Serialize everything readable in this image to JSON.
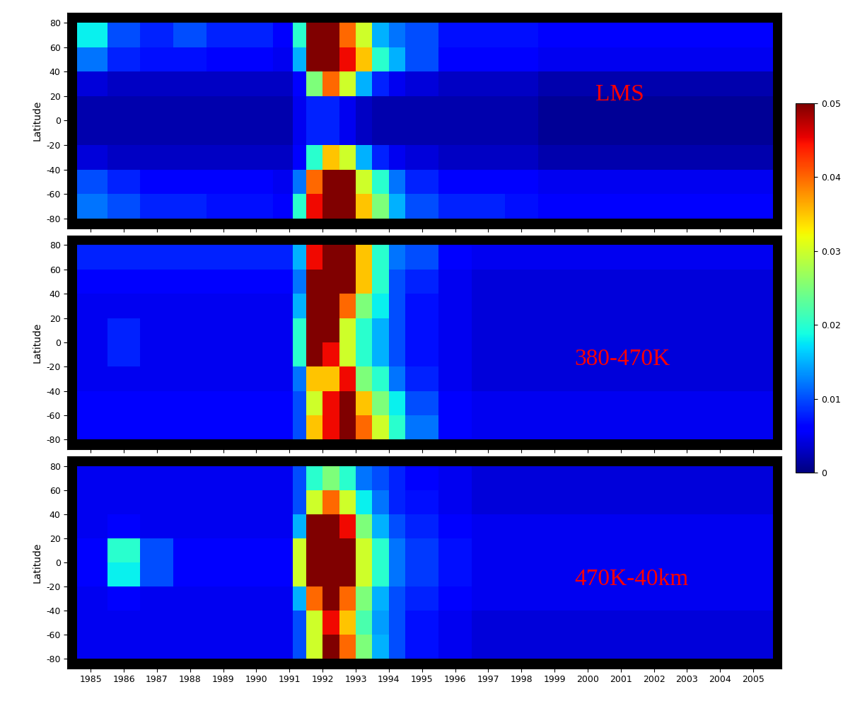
{
  "colorbar": {
    "range": [
      0,
      0.05
    ],
    "ticks": [
      0,
      0.01,
      0.02,
      0.03,
      0.04,
      0.05
    ]
  },
  "chart_data": [
    {
      "type": "heatmap",
      "label": "LMS",
      "ylabel": "Latitude",
      "tick_labels": "y",
      "xlim": [
        1984.3,
        2005.85
      ],
      "xticks": [
        1985,
        1986,
        1987,
        1988,
        1989,
        1990,
        1991,
        1992,
        1993,
        1994,
        1995,
        1996,
        1997,
        1998,
        1999,
        2000,
        2001,
        2002,
        2003,
        2004,
        2005
      ],
      "ylim": [
        -88,
        88
      ],
      "yticks": [
        -80,
        -60,
        -40,
        -20,
        0,
        20,
        40,
        60,
        80
      ],
      "x_edges": [
        1984.6,
        1985.5,
        1986.5,
        1987.5,
        1988.5,
        1989.5,
        1990.5,
        1991.1,
        1991.5,
        1992.0,
        1992.5,
        1993.0,
        1993.5,
        1994.0,
        1994.5,
        1995.5,
        1996.5,
        1997.5,
        1998.5,
        1999.5,
        2000.5,
        2001.5,
        2002.5,
        2003.5,
        2004.5,
        2005.6
      ],
      "y_edges": [
        -80,
        -60,
        -40,
        -20,
        0,
        20,
        40,
        60,
        80
      ],
      "cells": [
        [
          0.012,
          0.01,
          0.008,
          0.008,
          0.007,
          0.007,
          0.006,
          0.02,
          0.045,
          0.05,
          0.05,
          0.035,
          0.025,
          0.015,
          0.01,
          0.008,
          0.008,
          0.007,
          0.006,
          0.006,
          0.006,
          0.006,
          0.006,
          0.006,
          0.006
        ],
        [
          0.01,
          0.008,
          0.006,
          0.006,
          0.006,
          0.006,
          0.005,
          0.012,
          0.04,
          0.05,
          0.05,
          0.03,
          0.02,
          0.012,
          0.008,
          0.006,
          0.006,
          0.006,
          0.005,
          0.005,
          0.005,
          0.005,
          0.005,
          0.005,
          0.005
        ],
        [
          0.004,
          0.003,
          0.003,
          0.003,
          0.003,
          0.003,
          0.003,
          0.006,
          0.02,
          0.035,
          0.03,
          0.015,
          0.008,
          0.005,
          0.004,
          0.003,
          0.003,
          0.003,
          0.002,
          0.002,
          0.002,
          0.002,
          0.002,
          0.002,
          0.002
        ],
        [
          0.002,
          0.002,
          0.002,
          0.002,
          0.002,
          0.002,
          0.002,
          0.005,
          0.008,
          0.008,
          0.005,
          0.003,
          0.002,
          0.002,
          0.002,
          0.002,
          0.002,
          0.002,
          0.001,
          0.001,
          0.001,
          0.001,
          0.001,
          0.001,
          0.001
        ],
        [
          0.002,
          0.002,
          0.002,
          0.002,
          0.002,
          0.002,
          0.002,
          0.005,
          0.008,
          0.008,
          0.005,
          0.003,
          0.002,
          0.002,
          0.002,
          0.002,
          0.002,
          0.002,
          0.001,
          0.001,
          0.001,
          0.001,
          0.001,
          0.001,
          0.001
        ],
        [
          0.004,
          0.003,
          0.003,
          0.003,
          0.003,
          0.003,
          0.003,
          0.006,
          0.025,
          0.04,
          0.03,
          0.015,
          0.008,
          0.005,
          0.004,
          0.003,
          0.003,
          0.003,
          0.002,
          0.002,
          0.002,
          0.002,
          0.002,
          0.002,
          0.002
        ],
        [
          0.012,
          0.008,
          0.007,
          0.007,
          0.006,
          0.006,
          0.005,
          0.015,
          0.05,
          0.05,
          0.045,
          0.035,
          0.02,
          0.015,
          0.01,
          0.006,
          0.006,
          0.006,
          0.005,
          0.005,
          0.005,
          0.005,
          0.005,
          0.005,
          0.005
        ],
        [
          0.018,
          0.01,
          0.008,
          0.01,
          0.008,
          0.008,
          0.006,
          0.02,
          0.05,
          0.05,
          0.04,
          0.03,
          0.015,
          0.012,
          0.01,
          0.007,
          0.007,
          0.007,
          0.006,
          0.006,
          0.006,
          0.006,
          0.006,
          0.006,
          0.006
        ]
      ]
    },
    {
      "type": "heatmap",
      "label": "380-470K",
      "ylabel": "Latitude",
      "tick_labels": "y",
      "xlim": [
        1984.3,
        2005.85
      ],
      "xticks": [
        1985,
        1986,
        1987,
        1988,
        1989,
        1990,
        1991,
        1992,
        1993,
        1994,
        1995,
        1996,
        1997,
        1998,
        1999,
        2000,
        2001,
        2002,
        2003,
        2004,
        2005
      ],
      "ylim": [
        -88,
        88
      ],
      "yticks": [
        -80,
        -60,
        -40,
        -20,
        0,
        20,
        40,
        60,
        80
      ],
      "x_edges": [
        1984.6,
        1985.5,
        1986.5,
        1987.5,
        1988.5,
        1989.5,
        1990.5,
        1991.1,
        1991.5,
        1992.0,
        1992.5,
        1993.0,
        1993.5,
        1994.0,
        1994.5,
        1995.5,
        1996.5,
        1997.5,
        1998.5,
        1999.5,
        2000.5,
        2001.5,
        2002.5,
        2003.5,
        2004.5,
        2005.6
      ],
      "y_edges": [
        -80,
        -60,
        -40,
        -20,
        0,
        20,
        40,
        60,
        80
      ],
      "cells": [
        [
          0.006,
          0.006,
          0.006,
          0.006,
          0.006,
          0.006,
          0.006,
          0.01,
          0.035,
          0.045,
          0.05,
          0.04,
          0.03,
          0.02,
          0.012,
          0.006,
          0.005,
          0.005,
          0.005,
          0.005,
          0.005,
          0.005,
          0.005,
          0.005,
          0.005
        ],
        [
          0.006,
          0.006,
          0.006,
          0.006,
          0.006,
          0.006,
          0.006,
          0.01,
          0.03,
          0.045,
          0.05,
          0.035,
          0.025,
          0.018,
          0.01,
          0.006,
          0.005,
          0.005,
          0.005,
          0.005,
          0.005,
          0.005,
          0.005,
          0.005,
          0.005
        ],
        [
          0.005,
          0.005,
          0.005,
          0.005,
          0.005,
          0.005,
          0.005,
          0.012,
          0.035,
          0.035,
          0.045,
          0.025,
          0.02,
          0.012,
          0.008,
          0.005,
          0.004,
          0.004,
          0.004,
          0.004,
          0.004,
          0.004,
          0.004,
          0.004,
          0.004
        ],
        [
          0.005,
          0.008,
          0.005,
          0.005,
          0.005,
          0.005,
          0.005,
          0.02,
          0.05,
          0.045,
          0.03,
          0.02,
          0.015,
          0.01,
          0.007,
          0.005,
          0.004,
          0.004,
          0.004,
          0.004,
          0.004,
          0.004,
          0.004,
          0.004,
          0.004
        ],
        [
          0.005,
          0.008,
          0.005,
          0.005,
          0.005,
          0.005,
          0.005,
          0.02,
          0.05,
          0.05,
          0.03,
          0.02,
          0.015,
          0.01,
          0.007,
          0.005,
          0.004,
          0.004,
          0.004,
          0.004,
          0.004,
          0.004,
          0.004,
          0.004,
          0.004
        ],
        [
          0.005,
          0.005,
          0.005,
          0.005,
          0.005,
          0.005,
          0.005,
          0.015,
          0.05,
          0.05,
          0.04,
          0.025,
          0.018,
          0.01,
          0.007,
          0.005,
          0.004,
          0.004,
          0.004,
          0.004,
          0.004,
          0.004,
          0.004,
          0.004,
          0.004
        ],
        [
          0.006,
          0.006,
          0.006,
          0.006,
          0.006,
          0.006,
          0.006,
          0.012,
          0.05,
          0.05,
          0.05,
          0.035,
          0.02,
          0.01,
          0.008,
          0.005,
          0.004,
          0.004,
          0.004,
          0.004,
          0.004,
          0.004,
          0.004,
          0.004,
          0.004
        ],
        [
          0.008,
          0.008,
          0.008,
          0.008,
          0.008,
          0.008,
          0.008,
          0.015,
          0.045,
          0.05,
          0.05,
          0.035,
          0.02,
          0.012,
          0.01,
          0.006,
          0.005,
          0.005,
          0.005,
          0.005,
          0.005,
          0.005,
          0.005,
          0.005,
          0.005
        ]
      ]
    },
    {
      "type": "heatmap",
      "label": "470K-40km",
      "ylabel": "Latitude",
      "xlim": [
        1984.3,
        2005.85
      ],
      "xticks": [
        1985,
        1986,
        1987,
        1988,
        1989,
        1990,
        1991,
        1992,
        1993,
        1994,
        1995,
        1996,
        1997,
        1998,
        1999,
        2000,
        2001,
        2002,
        2003,
        2004,
        2005
      ],
      "ylim": [
        -88,
        88
      ],
      "yticks": [
        -80,
        -60,
        -40,
        -20,
        0,
        20,
        40,
        60,
        80
      ],
      "x_edges": [
        1984.6,
        1985.5,
        1986.5,
        1987.5,
        1988.5,
        1989.5,
        1990.5,
        1991.1,
        1991.5,
        1992.0,
        1992.5,
        1993.0,
        1993.5,
        1994.0,
        1994.5,
        1995.5,
        1996.5,
        1997.5,
        1998.5,
        1999.5,
        2000.5,
        2001.5,
        2002.5,
        2003.5,
        2004.5,
        2005.6
      ],
      "y_edges": [
        -80,
        -60,
        -40,
        -20,
        0,
        20,
        40,
        60,
        80
      ],
      "cells": [
        [
          0.005,
          0.005,
          0.005,
          0.005,
          0.005,
          0.005,
          0.005,
          0.01,
          0.03,
          0.05,
          0.04,
          0.025,
          0.015,
          0.01,
          0.007,
          0.005,
          0.004,
          0.004,
          0.004,
          0.004,
          0.004,
          0.004,
          0.004,
          0.004,
          0.004
        ],
        [
          0.005,
          0.005,
          0.005,
          0.005,
          0.005,
          0.005,
          0.005,
          0.01,
          0.03,
          0.045,
          0.035,
          0.022,
          0.014,
          0.01,
          0.007,
          0.005,
          0.004,
          0.004,
          0.004,
          0.004,
          0.004,
          0.004,
          0.004,
          0.004,
          0.004
        ],
        [
          0.005,
          0.006,
          0.005,
          0.005,
          0.005,
          0.005,
          0.005,
          0.015,
          0.04,
          0.05,
          0.04,
          0.025,
          0.015,
          0.01,
          0.008,
          0.006,
          0.005,
          0.005,
          0.005,
          0.005,
          0.005,
          0.005,
          0.005,
          0.005,
          0.005
        ],
        [
          0.006,
          0.018,
          0.01,
          0.006,
          0.006,
          0.006,
          0.006,
          0.03,
          0.05,
          0.05,
          0.05,
          0.03,
          0.02,
          0.012,
          0.009,
          0.007,
          0.005,
          0.005,
          0.005,
          0.005,
          0.005,
          0.005,
          0.005,
          0.005,
          0.005
        ],
        [
          0.006,
          0.02,
          0.01,
          0.006,
          0.006,
          0.006,
          0.006,
          0.03,
          0.05,
          0.05,
          0.05,
          0.03,
          0.02,
          0.012,
          0.009,
          0.007,
          0.005,
          0.005,
          0.005,
          0.005,
          0.005,
          0.005,
          0.005,
          0.005,
          0.005
        ],
        [
          0.005,
          0.006,
          0.005,
          0.005,
          0.005,
          0.005,
          0.005,
          0.015,
          0.05,
          0.05,
          0.045,
          0.025,
          0.015,
          0.01,
          0.008,
          0.006,
          0.005,
          0.005,
          0.005,
          0.005,
          0.005,
          0.005,
          0.005,
          0.005,
          0.005
        ],
        [
          0.005,
          0.005,
          0.005,
          0.005,
          0.005,
          0.005,
          0.005,
          0.01,
          0.03,
          0.04,
          0.03,
          0.018,
          0.012,
          0.008,
          0.007,
          0.005,
          0.004,
          0.004,
          0.004,
          0.004,
          0.004,
          0.004,
          0.004,
          0.004,
          0.004
        ],
        [
          0.005,
          0.005,
          0.005,
          0.005,
          0.005,
          0.005,
          0.005,
          0.01,
          0.02,
          0.025,
          0.02,
          0.012,
          0.01,
          0.008,
          0.006,
          0.005,
          0.004,
          0.004,
          0.004,
          0.004,
          0.004,
          0.004,
          0.004,
          0.004,
          0.004
        ]
      ]
    }
  ]
}
